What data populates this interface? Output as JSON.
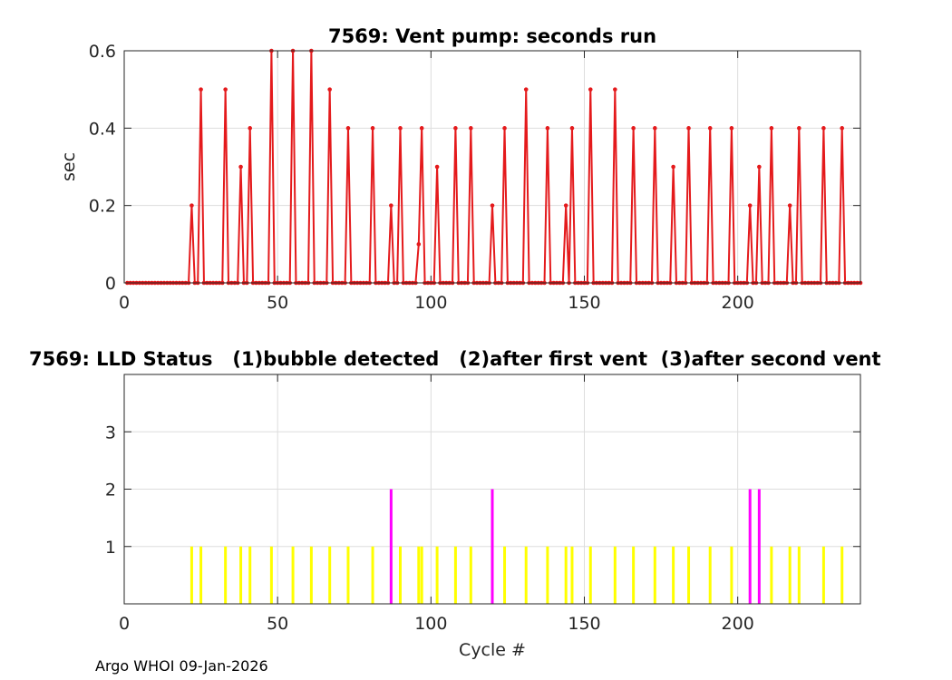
{
  "footer": "Argo WHOI 09-Jan-2026",
  "colors": {
    "vent": "#e41a1c",
    "status1": "#ffff00",
    "status2": "#ff00ff",
    "grid": "#dddddd",
    "axis": "#262626"
  },
  "chart_data": [
    {
      "type": "line",
      "title": "7569: Vent pump: seconds run",
      "xlabel": "",
      "ylabel": "sec",
      "xlim": [
        0,
        240
      ],
      "ylim": [
        0,
        0.6
      ],
      "xticks": [
        0,
        50,
        100,
        150,
        200
      ],
      "yticks": [
        0,
        0.2,
        0.4,
        0.6
      ],
      "ytick_labels": [
        "0",
        "0.2",
        "0.4",
        "0.6"
      ],
      "grid": true,
      "marker": "dot",
      "x_range": [
        1,
        240
      ],
      "default_value": 0,
      "nonzero_points": [
        [
          22,
          0.2
        ],
        [
          25,
          0.5
        ],
        [
          33,
          0.5
        ],
        [
          38,
          0.3
        ],
        [
          41,
          0.4
        ],
        [
          48,
          0.6
        ],
        [
          55,
          0.6
        ],
        [
          61,
          0.6
        ],
        [
          67,
          0.5
        ],
        [
          73,
          0.4
        ],
        [
          81,
          0.4
        ],
        [
          87,
          0.2
        ],
        [
          90,
          0.4
        ],
        [
          96,
          0.1
        ],
        [
          97,
          0.4
        ],
        [
          102,
          0.3
        ],
        [
          108,
          0.4
        ],
        [
          113,
          0.4
        ],
        [
          120,
          0.2
        ],
        [
          124,
          0.4
        ],
        [
          131,
          0.5
        ],
        [
          138,
          0.4
        ],
        [
          144,
          0.2
        ],
        [
          146,
          0.4
        ],
        [
          152,
          0.5
        ],
        [
          160,
          0.5
        ],
        [
          166,
          0.4
        ],
        [
          173,
          0.4
        ],
        [
          179,
          0.3
        ],
        [
          184,
          0.4
        ],
        [
          191,
          0.4
        ],
        [
          198,
          0.4
        ],
        [
          204,
          0.2
        ],
        [
          207,
          0.3
        ],
        [
          211,
          0.4
        ],
        [
          217,
          0.2
        ],
        [
          220,
          0.4
        ],
        [
          228,
          0.4
        ],
        [
          234,
          0.4
        ]
      ]
    },
    {
      "type": "bar",
      "title": "7569: LLD Status   (1)bubble detected   (2)after first vent  (3)after second vent",
      "xlabel": "Cycle #",
      "ylabel": "",
      "xlim": [
        0,
        240
      ],
      "ylim": [
        0,
        4
      ],
      "xticks": [
        0,
        50,
        100,
        150,
        200
      ],
      "yticks": [
        1,
        2,
        3
      ],
      "grid": true,
      "points": [
        [
          22,
          1
        ],
        [
          25,
          1
        ],
        [
          33,
          1
        ],
        [
          38,
          1
        ],
        [
          41,
          1
        ],
        [
          48,
          1
        ],
        [
          55,
          1
        ],
        [
          61,
          1
        ],
        [
          67,
          1
        ],
        [
          73,
          1
        ],
        [
          81,
          1
        ],
        [
          87,
          2
        ],
        [
          90,
          1
        ],
        [
          96,
          1
        ],
        [
          97,
          1
        ],
        [
          102,
          1
        ],
        [
          108,
          1
        ],
        [
          113,
          1
        ],
        [
          120,
          2
        ],
        [
          124,
          1
        ],
        [
          131,
          1
        ],
        [
          138,
          1
        ],
        [
          144,
          1
        ],
        [
          146,
          1
        ],
        [
          152,
          1
        ],
        [
          160,
          1
        ],
        [
          166,
          1
        ],
        [
          173,
          1
        ],
        [
          179,
          1
        ],
        [
          184,
          1
        ],
        [
          191,
          1
        ],
        [
          198,
          1
        ],
        [
          204,
          2
        ],
        [
          207,
          2
        ],
        [
          211,
          1
        ],
        [
          217,
          1
        ],
        [
          220,
          1
        ],
        [
          228,
          1
        ],
        [
          234,
          1
        ]
      ]
    }
  ]
}
